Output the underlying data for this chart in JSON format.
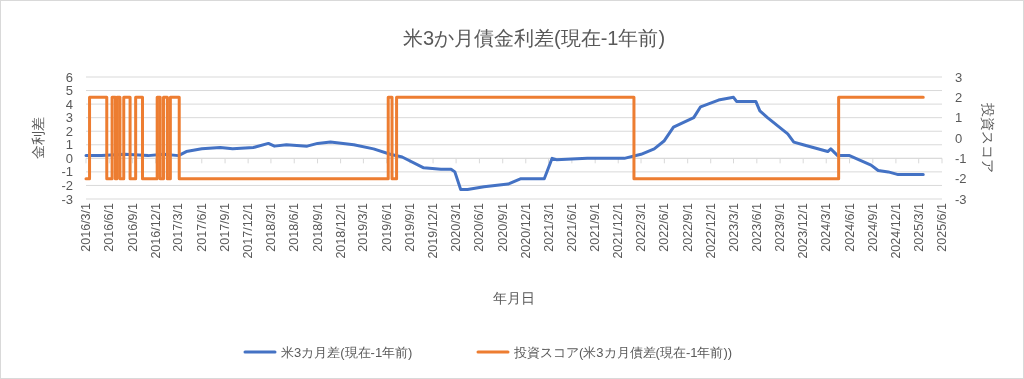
{
  "chart_data": {
    "type": "line",
    "title": "米3か月債金利差(現在-1年前)",
    "xlabel": "年月日",
    "ylabel": "金利差",
    "y2label": "投資スコア",
    "xlim": [
      "2016-03-01",
      "2025-06-01"
    ],
    "xticks": [
      {
        "value": "2016-03-01",
        "label": "2016/3/1"
      },
      {
        "value": "2016-06-01",
        "label": "2016/6/1"
      },
      {
        "value": "2016-09-01",
        "label": "2016/9/1"
      },
      {
        "value": "2016-12-01",
        "label": "2016/12/1"
      },
      {
        "value": "2017-03-01",
        "label": "2017/3/1"
      },
      {
        "value": "2017-06-01",
        "label": "2017/6/1"
      },
      {
        "value": "2017-09-01",
        "label": "2017/9/1"
      },
      {
        "value": "2017-12-01",
        "label": "2017/12/1"
      },
      {
        "value": "2018-03-01",
        "label": "2018/3/1"
      },
      {
        "value": "2018-06-01",
        "label": "2018/6/1"
      },
      {
        "value": "2018-09-01",
        "label": "2018/9/1"
      },
      {
        "value": "2018-12-01",
        "label": "2018/12/1"
      },
      {
        "value": "2019-03-01",
        "label": "2019/3/1"
      },
      {
        "value": "2019-06-01",
        "label": "2019/6/1"
      },
      {
        "value": "2019-09-01",
        "label": "2019/9/1"
      },
      {
        "value": "2019-12-01",
        "label": "2019/12/1"
      },
      {
        "value": "2020-03-01",
        "label": "2020/3/1"
      },
      {
        "value": "2020-06-01",
        "label": "2020/6/1"
      },
      {
        "value": "2020-09-01",
        "label": "2020/9/1"
      },
      {
        "value": "2020-12-01",
        "label": "2020/12/1"
      },
      {
        "value": "2021-03-01",
        "label": "2021/3/1"
      },
      {
        "value": "2021-06-01",
        "label": "2021/6/1"
      },
      {
        "value": "2021-09-01",
        "label": "2021/9/1"
      },
      {
        "value": "2021-12-01",
        "label": "2021/12/1"
      },
      {
        "value": "2022-03-01",
        "label": "2022/3/1"
      },
      {
        "value": "2022-06-01",
        "label": "2022/6/1"
      },
      {
        "value": "2022-09-01",
        "label": "2022/9/1"
      },
      {
        "value": "2022-12-01",
        "label": "2022/12/1"
      },
      {
        "value": "2023-03-01",
        "label": "2023/3/1"
      },
      {
        "value": "2023-06-01",
        "label": "2023/6/1"
      },
      {
        "value": "2023-09-01",
        "label": "2023/9/1"
      },
      {
        "value": "2023-12-01",
        "label": "2023/12/1"
      },
      {
        "value": "2024-03-01",
        "label": "2024/3/1"
      },
      {
        "value": "2024-06-01",
        "label": "2024/6/1"
      },
      {
        "value": "2024-09-01",
        "label": "2024/9/1"
      },
      {
        "value": "2024-12-01",
        "label": "2024/12/1"
      },
      {
        "value": "2025-03-01",
        "label": "2025/3/1"
      },
      {
        "value": "2025-06-01",
        "label": "2025/6/1"
      }
    ],
    "ylim": [
      -3,
      6
    ],
    "yticks": [
      -3,
      -2,
      -1,
      0,
      1,
      2,
      3,
      4,
      5,
      6
    ],
    "y2lim": [
      -3,
      3
    ],
    "y2ticks": [
      -3,
      -2,
      -1,
      0,
      1,
      2,
      3
    ],
    "grid": "y",
    "legend": "bottom",
    "marker": "none",
    "line_style": "solid",
    "series": [
      {
        "name": "米3カ月差(現在-1年前)",
        "color": "#4472c4",
        "type": "line",
        "x": [
          "2016-03-01",
          "2016-05-01",
          "2016-08-01",
          "2016-11-01",
          "2017-01-01",
          "2017-03-01",
          "2017-04-01",
          "2017-06-01",
          "2017-08-13",
          "2017-10-01",
          "2017-12-22",
          "2018-02-19",
          "2018-03-15",
          "2018-05-01",
          "2018-07-22",
          "2018-09-01",
          "2018-10-22",
          "2019-01-22",
          "2019-04-10",
          "2019-06-15",
          "2019-08-01",
          "2019-10-25",
          "2020-01-01",
          "2020-02-10",
          "2020-02-25",
          "2020-03-19",
          "2020-04-15",
          "2020-06-19",
          "2020-09-22",
          "2020-11-12",
          "2021-02-12",
          "2021-03-15",
          "2021-04-01",
          "2021-08-01",
          "2021-12-25",
          "2022-03-01",
          "2022-04-22",
          "2022-06-01",
          "2022-07-07",
          "2022-09-25",
          "2022-10-22",
          "2023-01-01",
          "2023-03-01",
          "2023-03-13",
          "2023-05-28",
          "2023-06-13",
          "2023-07-13",
          "2023-10-01",
          "2023-10-25",
          "2023-12-01",
          "2024-03-07",
          "2024-03-19",
          "2024-04-15",
          "2024-06-01",
          "2024-08-25",
          "2024-09-22",
          "2024-11-01",
          "2024-12-10",
          "2025-03-19"
        ],
        "values": [
          0.2,
          0.2,
          0.3,
          0.2,
          0.3,
          0.2,
          0.5,
          0.7,
          0.8,
          0.7,
          0.8,
          1.1,
          0.9,
          1.0,
          0.9,
          1.1,
          1.2,
          1.0,
          0.7,
          0.3,
          0.1,
          -0.7,
          -0.8,
          -0.8,
          -1.0,
          -2.3,
          -2.3,
          -2.1,
          -1.9,
          -1.5,
          -1.5,
          0.0,
          -0.1,
          0.0,
          0.0,
          0.3,
          0.7,
          1.3,
          2.3,
          3.0,
          3.8,
          4.3,
          4.5,
          4.2,
          4.2,
          3.5,
          3.0,
          1.8,
          1.2,
          1.0,
          0.5,
          0.7,
          0.2,
          0.2,
          -0.5,
          -0.9,
          -1.0,
          -1.2,
          -1.2
        ]
      },
      {
        "name": "投資スコア(米3カ月債差(現在-1年前))",
        "color": "#ed7d31",
        "type": "step",
        "axis": "y2",
        "x": [
          "2016-03-01",
          "2016-03-15",
          "2016-05-22",
          "2016-06-12",
          "2016-06-25",
          "2016-07-01",
          "2016-07-13",
          "2016-07-28",
          "2016-08-22",
          "2016-09-13",
          "2016-10-10",
          "2016-12-07",
          "2016-12-19",
          "2017-01-01",
          "2017-01-16",
          "2017-01-28",
          "2017-03-04",
          "2019-06-07",
          "2019-06-22",
          "2019-07-10",
          "2022-02-01",
          "2024-04-19",
          "2025-03-19"
        ],
        "values": [
          -2,
          2,
          -2,
          2,
          -2,
          2,
          -2,
          2,
          -2,
          2,
          -2,
          2,
          -2,
          2,
          -2,
          2,
          -2,
          2,
          -2,
          2,
          -2,
          2,
          2
        ]
      }
    ]
  }
}
